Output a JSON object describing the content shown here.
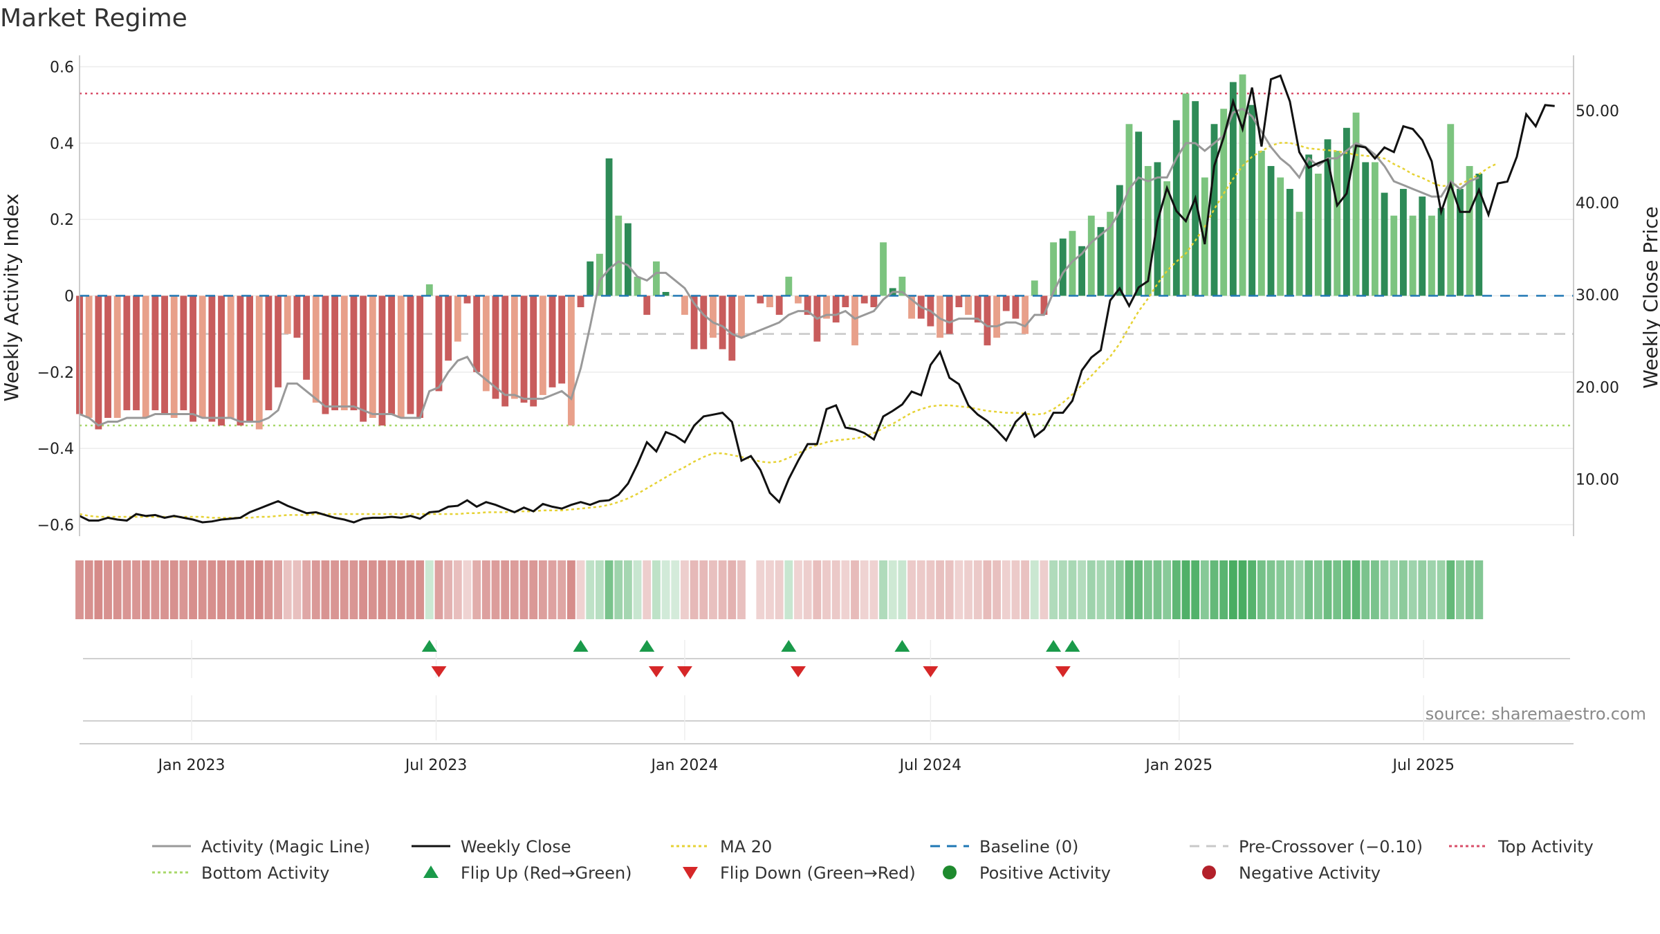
{
  "chart_data": {
    "type": "bar",
    "title": "Market Regime",
    "ylabel": "Weekly Activity Index",
    "y2label": "Weekly Close Price",
    "source": "source: sharemaestro.com",
    "ylim": [
      -0.63,
      0.63
    ],
    "y2lim": [
      3.8,
      56.0
    ],
    "xlim": [
      "2022-10-10",
      "2025-10-20"
    ],
    "yticks": [
      "0.6",
      "0.4",
      "0.2",
      "0",
      "−0.2",
      "−0.4",
      "−0.6"
    ],
    "ytick_values": [
      0.6,
      0.4,
      0.2,
      0,
      -0.2,
      -0.4,
      -0.6
    ],
    "y2ticks": [
      "50.00",
      "40.00",
      "30.00",
      "20.00",
      "10.00"
    ],
    "y2tick_values": [
      50,
      40,
      30,
      20,
      10
    ],
    "xticks": [
      "Jan 2023",
      "Jul 2023",
      "Jan 2024",
      "Jul 2024",
      "Jan 2025",
      "Jul 2025"
    ],
    "xtick_dates": [
      "2023-01-01",
      "2023-07-01",
      "2024-01-01",
      "2024-07-01",
      "2025-01-01",
      "2025-07-01"
    ],
    "start_date": "2022-10-10",
    "weekly_activity": [
      -0.31,
      -0.32,
      -0.35,
      -0.32,
      -0.32,
      -0.3,
      -0.3,
      -0.32,
      -0.3,
      -0.31,
      -0.32,
      -0.3,
      -0.33,
      -0.32,
      -0.33,
      -0.34,
      -0.32,
      -0.34,
      -0.33,
      -0.35,
      -0.3,
      -0.24,
      -0.1,
      -0.11,
      -0.22,
      -0.28,
      -0.31,
      -0.3,
      -0.3,
      -0.3,
      -0.33,
      -0.32,
      -0.34,
      -0.31,
      -0.32,
      -0.31,
      -0.32,
      0.03,
      -0.25,
      -0.17,
      -0.12,
      -0.02,
      -0.2,
      -0.25,
      -0.27,
      -0.29,
      -0.27,
      -0.28,
      -0.29,
      -0.26,
      -0.24,
      -0.23,
      -0.34,
      -0.03,
      0.09,
      0.11,
      0.36,
      0.21,
      0.19,
      0.05,
      -0.05,
      0.09,
      0.01,
      0.0,
      -0.05,
      -0.14,
      -0.14,
      -0.11,
      -0.14,
      -0.17,
      -0.11,
      0.0,
      -0.02,
      -0.03,
      -0.05,
      0.05,
      -0.02,
      -0.05,
      -0.12,
      -0.06,
      -0.07,
      -0.03,
      -0.13,
      -0.02,
      -0.03,
      0.14,
      0.02,
      0.05,
      -0.06,
      -0.06,
      -0.08,
      -0.11,
      -0.1,
      -0.03,
      -0.05,
      -0.07,
      -0.13,
      -0.11,
      -0.04,
      -0.06,
      -0.1,
      0.04,
      -0.05,
      0.14,
      0.15,
      0.17,
      0.13,
      0.21,
      0.18,
      0.22,
      0.29,
      0.45,
      0.43,
      0.34,
      0.35,
      0.3,
      0.46,
      0.53,
      0.51,
      0.31,
      0.45,
      0.49,
      0.56,
      0.58,
      0.5,
      0.38,
      0.34,
      0.31,
      0.28,
      0.22,
      0.37,
      0.32,
      0.41,
      0.38,
      0.44,
      0.48,
      0.35,
      0.35,
      0.27,
      0.21,
      0.28,
      0.21,
      0.26,
      0.21,
      0.23,
      0.45,
      0.28,
      0.34,
      0.32
    ],
    "magic_line": [
      -0.31,
      -0.32,
      -0.34,
      -0.33,
      -0.33,
      -0.32,
      -0.32,
      -0.32,
      -0.31,
      -0.31,
      -0.31,
      -0.31,
      -0.31,
      -0.32,
      -0.32,
      -0.32,
      -0.32,
      -0.33,
      -0.33,
      -0.33,
      -0.32,
      -0.3,
      -0.23,
      -0.23,
      -0.25,
      -0.27,
      -0.29,
      -0.29,
      -0.29,
      -0.29,
      -0.3,
      -0.31,
      -0.31,
      -0.31,
      -0.32,
      -0.32,
      -0.32,
      -0.25,
      -0.24,
      -0.2,
      -0.17,
      -0.16,
      -0.2,
      -0.22,
      -0.24,
      -0.26,
      -0.26,
      -0.27,
      -0.27,
      -0.27,
      -0.26,
      -0.25,
      -0.27,
      -0.19,
      -0.08,
      0.04,
      0.07,
      0.09,
      0.08,
      0.05,
      0.04,
      0.06,
      0.06,
      0.04,
      0.02,
      -0.02,
      -0.05,
      -0.07,
      -0.08,
      -0.1,
      -0.11,
      -0.1,
      -0.09,
      -0.08,
      -0.07,
      -0.05,
      -0.04,
      -0.04,
      -0.06,
      -0.05,
      -0.05,
      -0.04,
      -0.06,
      -0.05,
      -0.04,
      -0.01,
      0.01,
      0.01,
      -0.01,
      -0.03,
      -0.04,
      -0.06,
      -0.07,
      -0.06,
      -0.06,
      -0.06,
      -0.08,
      -0.08,
      -0.07,
      -0.07,
      -0.08,
      -0.05,
      -0.05,
      0.01,
      0.06,
      0.09,
      0.11,
      0.14,
      0.16,
      0.18,
      0.22,
      0.28,
      0.31,
      0.3,
      0.31,
      0.31,
      0.36,
      0.4,
      0.4,
      0.38,
      0.4,
      0.42,
      0.48,
      0.49,
      0.47,
      0.43,
      0.39,
      0.36,
      0.34,
      0.31,
      0.36,
      0.34,
      0.36,
      0.36,
      0.38,
      0.4,
      0.39,
      0.37,
      0.34,
      0.3,
      0.29,
      0.28,
      0.27,
      0.26,
      0.26,
      0.3,
      0.28,
      0.3,
      0.31
    ],
    "weekly_close": [
      6.0,
      5.5,
      5.5,
      5.8,
      5.6,
      5.5,
      6.2,
      6.0,
      6.1,
      5.8,
      6.0,
      5.8,
      5.6,
      5.3,
      5.4,
      5.6,
      5.7,
      5.8,
      6.4,
      6.8,
      7.2,
      7.6,
      7.1,
      6.7,
      6.3,
      6.4,
      6.1,
      5.8,
      5.6,
      5.3,
      5.7,
      5.8,
      5.8,
      5.9,
      5.8,
      6.0,
      5.7,
      6.4,
      6.5,
      7.0,
      7.1,
      7.7,
      7.0,
      7.5,
      7.2,
      6.8,
      6.4,
      6.9,
      6.5,
      7.3,
      7.0,
      6.8,
      7.2,
      7.5,
      7.2,
      7.6,
      7.7,
      8.3,
      9.5,
      11.6,
      14.0,
      13.0,
      15.1,
      14.7,
      14.0,
      15.8,
      16.8,
      17.0,
      17.2,
      16.2,
      12.0,
      12.5,
      11.0,
      8.5,
      7.5,
      10.0,
      12.0,
      13.8,
      13.8,
      17.6,
      18.0,
      15.6,
      15.4,
      15.0,
      14.3,
      16.8,
      17.4,
      18.1,
      19.5,
      19.1,
      22.4,
      23.8,
      21.0,
      20.3,
      18.0,
      17.0,
      16.3,
      15.3,
      14.2,
      16.2,
      17.2,
      14.6,
      15.4,
      17.2,
      17.2,
      18.5,
      21.8,
      23.2,
      24.0,
      29.4,
      30.7,
      28.8,
      30.8,
      31.5,
      38.0,
      41.6,
      39.1,
      38.0,
      40.5,
      35.5,
      44.0,
      47.1,
      51.0,
      48.0,
      52.5,
      46.1,
      53.4,
      53.8,
      51.0,
      45.5,
      43.8,
      44.3,
      44.7,
      39.7,
      41.0,
      46.2,
      46.0,
      44.8,
      46.0,
      45.5,
      48.3,
      48.0,
      46.8,
      44.5,
      39.0,
      42.0,
      39.0,
      39.0,
      41.4,
      38.7,
      42.1,
      42.3,
      45.0,
      49.6,
      48.3,
      50.6,
      50.5
    ],
    "ma20": [
      6.2,
      6.0,
      5.9,
      5.9,
      5.9,
      5.9,
      5.9,
      5.9,
      5.9,
      5.9,
      5.9,
      5.9,
      5.9,
      5.9,
      5.8,
      5.8,
      5.8,
      5.8,
      5.8,
      5.9,
      5.9,
      6.0,
      6.1,
      6.1,
      6.1,
      6.2,
      6.2,
      6.2,
      6.2,
      6.2,
      6.2,
      6.2,
      6.2,
      6.2,
      6.2,
      6.2,
      6.2,
      6.2,
      6.2,
      6.2,
      6.2,
      6.3,
      6.3,
      6.4,
      6.4,
      6.4,
      6.5,
      6.5,
      6.5,
      6.6,
      6.6,
      6.6,
      6.7,
      6.8,
      6.9,
      7.0,
      7.2,
      7.5,
      7.9,
      8.4,
      9.0,
      9.6,
      10.2,
      10.8,
      11.3,
      11.9,
      12.4,
      12.8,
      12.8,
      12.6,
      12.4,
      12.2,
      11.9,
      11.8,
      11.9,
      12.3,
      12.8,
      13.3,
      13.7,
      14.0,
      14.2,
      14.3,
      14.4,
      14.6,
      15.0,
      15.5,
      16.0,
      16.6,
      17.2,
      17.6,
      17.9,
      18.0,
      18.0,
      17.9,
      17.8,
      17.6,
      17.4,
      17.3,
      17.2,
      17.2,
      17.1,
      17.0,
      17.1,
      17.6,
      18.3,
      19.2,
      20.2,
      21.2,
      22.3,
      23.3,
      24.7,
      26.5,
      28.2,
      29.6,
      31.2,
      32.6,
      33.6,
      34.5,
      35.9,
      37.4,
      39.3,
      41.0,
      42.6,
      44.0,
      45.0,
      45.6,
      46.2,
      46.5,
      46.5,
      46.2,
      45.9,
      45.8,
      45.7,
      45.6,
      45.4,
      45.2,
      45.1,
      45.0,
      44.8,
      44.2,
      43.7,
      43.1,
      42.7,
      42.2,
      41.8,
      41.9,
      42.0,
      42.5,
      43.1,
      43.8,
      44.3
    ],
    "top_activity": 0.53,
    "bottom_activity": -0.34,
    "pre_crossover": -0.1,
    "baseline": 0,
    "flip_up_weeks": [
      37,
      53,
      60,
      75,
      87,
      103,
      105
    ],
    "flip_down_weeks": [
      38,
      61,
      64,
      76,
      90,
      104
    ],
    "regime_strip_gap_week": 71,
    "colors": {
      "neg_strong": "#c85c5c",
      "neg_light": "#e8a08a",
      "pos_strong": "#2e8b57",
      "pos_light": "#7cc47f",
      "magic": "#999999",
      "close": "#111111",
      "ma20": "#e6d234",
      "baseline": "#1f77b4",
      "precross": "#c8c8c8",
      "top": "#d94f6a",
      "bottom": "#a8d86a",
      "flip_up": "#1a9a4a",
      "flip_down": "#d62728",
      "pos_dot": "#1e8a2e",
      "neg_dot": "#b3202a"
    },
    "legend": [
      {
        "label": "Activity (Magic Line)",
        "icon": "solid-line",
        "color": "#999999"
      },
      {
        "label": "Weekly Close",
        "icon": "solid-line",
        "color": "#111111"
      },
      {
        "label": "MA 20",
        "icon": "dotted-line",
        "color": "#e6d234"
      },
      {
        "label": "Baseline (0)",
        "icon": "dashed-line",
        "color": "#1f77b4"
      },
      {
        "label": "Pre-Crossover (−0.10)",
        "icon": "dashed-line",
        "color": "#c8c8c8"
      },
      {
        "label": "Top Activity",
        "icon": "dotted-line",
        "color": "#d94f6a"
      },
      {
        "label": "Bottom Activity",
        "icon": "dotted-line",
        "color": "#a8d86a"
      },
      {
        "label": "Flip Up (Red→Green)",
        "icon": "triangle-up",
        "color": "#1a9a4a"
      },
      {
        "label": "Flip Down (Green→Red)",
        "icon": "triangle-down",
        "color": "#d62728"
      },
      {
        "label": "Positive Activity",
        "icon": "dot",
        "color": "#1e8a2e"
      },
      {
        "label": "Negative Activity",
        "icon": "dot",
        "color": "#b3202a"
      }
    ]
  }
}
